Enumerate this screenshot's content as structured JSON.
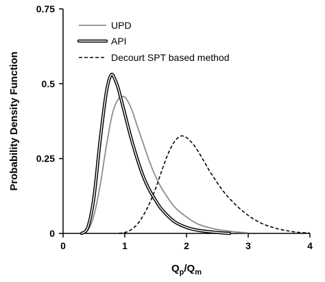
{
  "chart_data": {
    "type": "line",
    "title": "",
    "xlabel": {
      "main": "Q",
      "sub1": "p",
      "sep": "/Q",
      "sub2": "m"
    },
    "ylabel": "Probability Density Function",
    "xlim": [
      0,
      4
    ],
    "ylim": [
      0,
      0.75
    ],
    "xticks": [
      0,
      1,
      2,
      3,
      4
    ],
    "xtick_labels": [
      "0",
      "1",
      "2",
      "3",
      "4"
    ],
    "yticks": [
      0,
      0.25,
      0.5,
      0.75
    ],
    "ytick_labels": [
      "0",
      "0.25",
      "0.5",
      "0.75"
    ],
    "grid": false,
    "legend_position": "top-right",
    "series": [
      {
        "name": "UPD",
        "style": "solid",
        "color": "#8c8c8c",
        "x": [
          0.3,
          0.4,
          0.5,
          0.6,
          0.7,
          0.8,
          0.9,
          1.0,
          1.1,
          1.2,
          1.3,
          1.4,
          1.5,
          1.6,
          1.8,
          2.0,
          2.2,
          2.5,
          2.8,
          3.0
        ],
        "y": [
          0.0,
          0.01,
          0.06,
          0.16,
          0.29,
          0.4,
          0.45,
          0.455,
          0.42,
          0.36,
          0.3,
          0.24,
          0.19,
          0.15,
          0.09,
          0.055,
          0.03,
          0.013,
          0.005,
          0.002
        ]
      },
      {
        "name": "API",
        "style": "double",
        "color": "#000000",
        "x": [
          0.3,
          0.4,
          0.5,
          0.6,
          0.7,
          0.78,
          0.85,
          0.9,
          1.0,
          1.1,
          1.2,
          1.3,
          1.4,
          1.5,
          1.6,
          1.8,
          2.0,
          2.2,
          2.5,
          2.7
        ],
        "y": [
          0.0,
          0.02,
          0.12,
          0.31,
          0.47,
          0.53,
          0.51,
          0.48,
          0.4,
          0.32,
          0.25,
          0.19,
          0.145,
          0.11,
          0.08,
          0.04,
          0.02,
          0.01,
          0.003,
          0.0
        ]
      },
      {
        "name": "Decourt SPT based method",
        "style": "dashed",
        "color": "#000000",
        "x": [
          0.9,
          1.0,
          1.1,
          1.2,
          1.3,
          1.4,
          1.5,
          1.6,
          1.7,
          1.8,
          1.9,
          2.0,
          2.1,
          2.2,
          2.3,
          2.4,
          2.6,
          2.8,
          3.0,
          3.2,
          3.4,
          3.6,
          3.8,
          4.0
        ],
        "y": [
          0.0,
          0.003,
          0.012,
          0.03,
          0.06,
          0.1,
          0.15,
          0.21,
          0.265,
          0.305,
          0.325,
          0.32,
          0.3,
          0.27,
          0.235,
          0.2,
          0.14,
          0.095,
          0.06,
          0.035,
          0.02,
          0.01,
          0.004,
          0.001
        ]
      }
    ]
  }
}
